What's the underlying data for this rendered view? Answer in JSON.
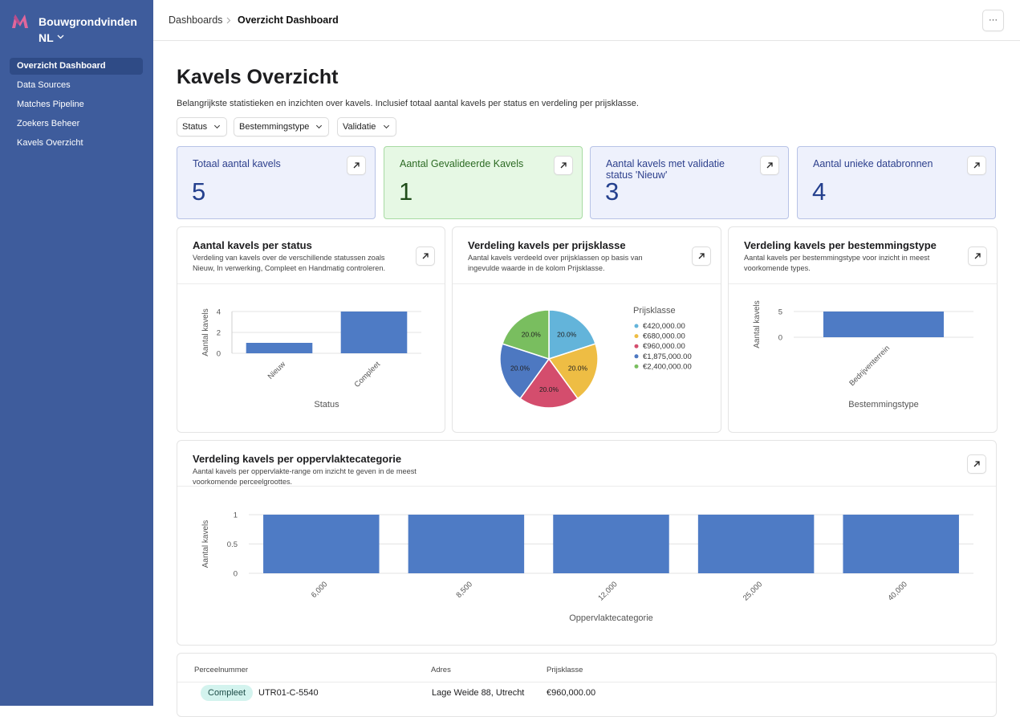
{
  "sidebar": {
    "brand": "Bouwgrondvinden",
    "region": "NL",
    "nav": [
      "Overzicht Dashboard",
      "Data Sources",
      "Matches Pipeline",
      "Zoekers Beheer",
      "Kavels Overzicht"
    ]
  },
  "header": {
    "breadcrumb": [
      "Dashboards",
      "Overzicht Dashboard"
    ],
    "more": "···"
  },
  "page": {
    "title": "Kavels Overzicht",
    "description": "Belangrijkste statistieken en inzichten over kavels. Inclusief totaal aantal kavels per status en verdeling per prijsklasse.",
    "filters": [
      "Status",
      "Bestemmingstype",
      "Validatie"
    ]
  },
  "kpis": [
    {
      "label": "Totaal aantal kavels",
      "value": 5
    },
    {
      "label": "Aantal Gevalideerde Kavels",
      "value": 1
    },
    {
      "label": "Aantal kavels met validatie status 'Nieuw'",
      "value": 3
    },
    {
      "label": "Aantal unieke databronnen",
      "value": 4
    }
  ],
  "chart_data": [
    {
      "type": "bar",
      "title": "Aantal kavels per status",
      "subtitle": "Verdeling van kavels over de verschillende statussen zoals Nieuw, In verwerking, Compleet en Handmatig controleren.",
      "categories": [
        "Nieuw",
        "Compleet"
      ],
      "values": [
        1,
        4
      ],
      "color": "#4e7bc5",
      "ylim": [
        0,
        4
      ],
      "yticks": [
        0,
        2,
        4
      ],
      "x_label": "Status",
      "y_label": "Aantal kavels"
    },
    {
      "type": "pie",
      "title": "Verdeling kavels per prijsklasse",
      "subtitle": "Aantal kavels verdeeld over prijsklassen op basis van ingevulde waarde in de kolom Prijsklasse.",
      "legend_title": "Prijsklasse",
      "categories": [
        "€420,000.00",
        "€680,000.00",
        "€960,000.00",
        "€1,875,000.00",
        "€2,400,000.00"
      ],
      "values": [
        20,
        20,
        20,
        20,
        20
      ],
      "value_labels": [
        "20.0%",
        "20.0%",
        "20.0%",
        "20.0%",
        "20.0%"
      ],
      "colors": [
        "#63b4da",
        "#eebd44",
        "#d44d6d",
        "#4d78c1",
        "#79be5f"
      ]
    },
    {
      "type": "bar",
      "title": "Verdeling kavels per bestemmingstype",
      "subtitle": "Aantal kavels per bestemmingstype voor inzicht in meest voorkomende types.",
      "categories": [
        "Bedrijventerrein"
      ],
      "values": [
        5
      ],
      "color": "#4e7bc5",
      "ylim": [
        0,
        5
      ],
      "yticks": [
        0,
        5
      ],
      "x_label": "Bestemmingstype",
      "y_label": "Aantal kavels"
    },
    {
      "type": "bar",
      "title": "Verdeling kavels per oppervlaktecategorie",
      "subtitle": "Aantal kavels per oppervlakte-range om inzicht te geven in de meest voorkomende perceelgroottes.",
      "categories": [
        "6,000",
        "8,500",
        "12,000",
        "25,000",
        "40,000"
      ],
      "values": [
        1,
        1,
        1,
        1,
        1
      ],
      "color": "#4e7bc5",
      "ylim": [
        0,
        1
      ],
      "yticks": [
        0,
        0.5,
        1
      ],
      "x_label": "Oppervlaktecategorie",
      "y_label": "Aantal kavels"
    }
  ],
  "table": {
    "columns": [
      "Perceelnummer",
      "Adres",
      "Prijsklasse"
    ],
    "rows": [
      {
        "status": "Compleet",
        "perceelnummer": "UTR01-C-5540",
        "adres": "Lage Weide 88, Utrecht",
        "prijsklasse": "€960,000.00"
      }
    ]
  }
}
